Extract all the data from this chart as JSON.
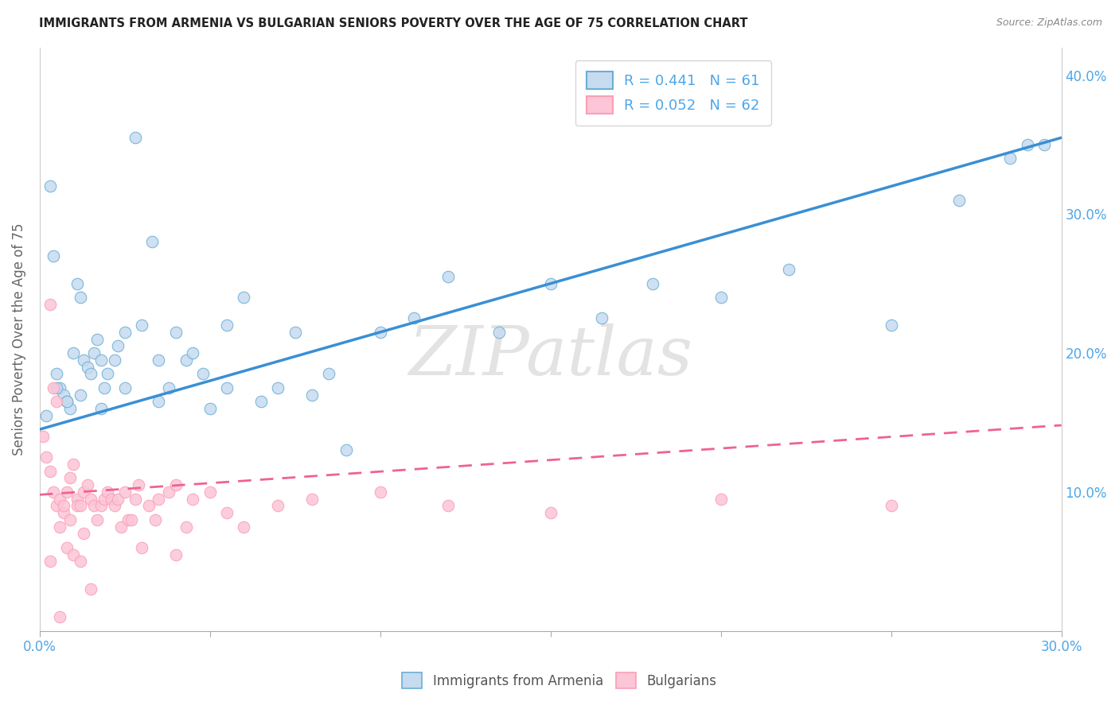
{
  "title": "IMMIGRANTS FROM ARMENIA VS BULGARIAN SENIORS POVERTY OVER THE AGE OF 75 CORRELATION CHART",
  "source": "Source: ZipAtlas.com",
  "ylabel": "Seniors Poverty Over the Age of 75",
  "xlim": [
    0.0,
    0.3
  ],
  "ylim": [
    0.0,
    0.42
  ],
  "x_ticks": [
    0.0,
    0.05,
    0.1,
    0.15,
    0.2,
    0.25,
    0.3
  ],
  "y_ticks_right": [
    0.1,
    0.2,
    0.3,
    0.4
  ],
  "y_tick_labels_right": [
    "10.0%",
    "20.0%",
    "30.0%",
    "40.0%"
  ],
  "legend_r1": "R = 0.441",
  "legend_n1": "N = 61",
  "legend_r2": "R = 0.052",
  "legend_n2": "N = 62",
  "color_armenia": "#6baed6",
  "color_bulgaria": "#fa9fb5",
  "color_armenia_light": "#c6dbef",
  "color_bulgaria_light": "#fcc5d8",
  "armenia_line_x": [
    0.0,
    0.3
  ],
  "armenia_line_y": [
    0.145,
    0.355
  ],
  "bulgaria_line_x": [
    0.0,
    0.3
  ],
  "bulgaria_line_y": [
    0.098,
    0.148
  ],
  "armenia_scatter_x": [
    0.002,
    0.003,
    0.004,
    0.005,
    0.006,
    0.007,
    0.008,
    0.009,
    0.01,
    0.011,
    0.012,
    0.013,
    0.014,
    0.015,
    0.016,
    0.017,
    0.018,
    0.019,
    0.02,
    0.022,
    0.023,
    0.025,
    0.028,
    0.03,
    0.033,
    0.035,
    0.038,
    0.04,
    0.043,
    0.045,
    0.048,
    0.05,
    0.055,
    0.06,
    0.065,
    0.07,
    0.075,
    0.08,
    0.085,
    0.09,
    0.1,
    0.11,
    0.12,
    0.135,
    0.15,
    0.165,
    0.18,
    0.2,
    0.22,
    0.25,
    0.27,
    0.285,
    0.295,
    0.005,
    0.008,
    0.012,
    0.018,
    0.025,
    0.035,
    0.055,
    0.29
  ],
  "armenia_scatter_y": [
    0.155,
    0.32,
    0.27,
    0.185,
    0.175,
    0.17,
    0.165,
    0.16,
    0.2,
    0.25,
    0.24,
    0.195,
    0.19,
    0.185,
    0.2,
    0.21,
    0.195,
    0.175,
    0.185,
    0.195,
    0.205,
    0.215,
    0.355,
    0.22,
    0.28,
    0.195,
    0.175,
    0.215,
    0.195,
    0.2,
    0.185,
    0.16,
    0.175,
    0.24,
    0.165,
    0.175,
    0.215,
    0.17,
    0.185,
    0.13,
    0.215,
    0.225,
    0.255,
    0.215,
    0.25,
    0.225,
    0.25,
    0.24,
    0.26,
    0.22,
    0.31,
    0.34,
    0.35,
    0.175,
    0.165,
    0.17,
    0.16,
    0.175,
    0.165,
    0.22,
    0.35
  ],
  "bulgaria_scatter_x": [
    0.001,
    0.002,
    0.003,
    0.003,
    0.004,
    0.004,
    0.005,
    0.005,
    0.006,
    0.006,
    0.007,
    0.007,
    0.008,
    0.008,
    0.009,
    0.009,
    0.01,
    0.01,
    0.011,
    0.011,
    0.012,
    0.012,
    0.013,
    0.013,
    0.014,
    0.015,
    0.015,
    0.016,
    0.017,
    0.018,
    0.019,
    0.02,
    0.021,
    0.022,
    0.023,
    0.024,
    0.025,
    0.026,
    0.027,
    0.028,
    0.029,
    0.03,
    0.032,
    0.034,
    0.035,
    0.038,
    0.04,
    0.043,
    0.045,
    0.05,
    0.055,
    0.06,
    0.07,
    0.08,
    0.1,
    0.12,
    0.15,
    0.2,
    0.25,
    0.003,
    0.006,
    0.04
  ],
  "bulgaria_scatter_y": [
    0.14,
    0.125,
    0.115,
    0.235,
    0.1,
    0.175,
    0.09,
    0.165,
    0.095,
    0.075,
    0.085,
    0.09,
    0.1,
    0.06,
    0.11,
    0.08,
    0.12,
    0.055,
    0.095,
    0.09,
    0.09,
    0.05,
    0.1,
    0.07,
    0.105,
    0.095,
    0.03,
    0.09,
    0.08,
    0.09,
    0.095,
    0.1,
    0.095,
    0.09,
    0.095,
    0.075,
    0.1,
    0.08,
    0.08,
    0.095,
    0.105,
    0.06,
    0.09,
    0.08,
    0.095,
    0.1,
    0.105,
    0.075,
    0.095,
    0.1,
    0.085,
    0.075,
    0.09,
    0.095,
    0.1,
    0.09,
    0.085,
    0.095,
    0.09,
    0.05,
    0.01,
    0.055
  ]
}
